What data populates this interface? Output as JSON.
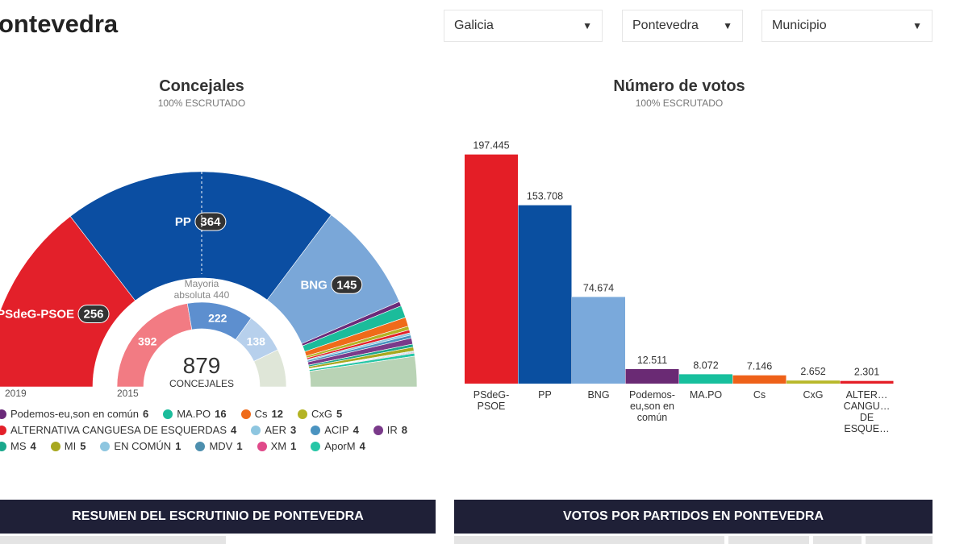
{
  "header": {
    "title": "ontevedra"
  },
  "filters": [
    "Galicia",
    "Pontevedra",
    "Municipio"
  ],
  "chart_data": [
    {
      "type": "hemicycle",
      "title": "Concejales",
      "subtitle": "100% ESCRUTADO",
      "categories": [
        "2019",
        "2015"
      ],
      "total": 879,
      "total_label": "CONCEJALES",
      "majority_text": [
        "Mayoria",
        "absoluta 440"
      ],
      "series": [
        {
          "name": "PSdeG-PSOE",
          "color": "#e3202a",
          "color_2015": "#f27b83",
          "values": [
            256,
            392
          ]
        },
        {
          "name": "PP",
          "color": "#0b4ea2",
          "color_2015": "#5d8fcf",
          "values": [
            364,
            222
          ]
        },
        {
          "name": "BNG",
          "color": "#7aa7d8",
          "color_2015": "#b7d0ec",
          "values": [
            145,
            138
          ]
        },
        {
          "name": "Podemos-eu,son en común",
          "color": "#6b2a7a",
          "values": [
            6,
            null
          ]
        },
        {
          "name": "MA.PO",
          "color": "#1bbc9b",
          "values": [
            16,
            null
          ]
        },
        {
          "name": "Cs",
          "color": "#ef6b1a",
          "values": [
            12,
            null
          ]
        },
        {
          "name": "CxG",
          "color": "#b3b324",
          "values": [
            5,
            null
          ]
        },
        {
          "name": "ALTERNATIVA CANGUESA DE ESQUERDAS",
          "color": "#e3202a",
          "values": [
            4,
            null
          ]
        },
        {
          "name": "AER",
          "color": "#8ec6e0",
          "values": [
            3,
            null
          ]
        },
        {
          "name": "ACIP",
          "color": "#4a93c0",
          "values": [
            4,
            null
          ]
        },
        {
          "name": "IR",
          "color": "#7a3a8a",
          "values": [
            8,
            null
          ]
        },
        {
          "name": "MS",
          "color": "#1aa88c",
          "values": [
            4,
            null
          ]
        },
        {
          "name": "MI",
          "color": "#a8a81f",
          "values": [
            5,
            null
          ]
        },
        {
          "name": "EN COMÚN",
          "color": "#8ec6e0",
          "values": [
            1,
            null
          ]
        },
        {
          "name": "MDV",
          "color": "#4d8fae",
          "values": [
            1,
            null
          ]
        },
        {
          "name": "XM",
          "color": "#e04a8a",
          "values": [
            1,
            null
          ]
        },
        {
          "name": "AporM",
          "color": "#26c6a6",
          "values": [
            4,
            null
          ]
        }
      ]
    },
    {
      "type": "bar",
      "title": "Número de votos",
      "subtitle": "100% ESCRUTADO",
      "categories": [
        "PSdeG-PSOE",
        "PP",
        "BNG",
        "Podemos-eu,son en común",
        "MA.PO",
        "Cs",
        "CxG",
        "ALTER… CANGU… DE ESQUE…"
      ],
      "values": [
        197445,
        153708,
        74674,
        12511,
        8072,
        7146,
        2652,
        2301
      ],
      "value_labels": [
        "197.445",
        "153.708",
        "74.674",
        "12.511",
        "8.072",
        "7.146",
        "2.652",
        "2.301"
      ],
      "colors": [
        "#e41e26",
        "#0a4fa0",
        "#7aa9db",
        "#6a2a74",
        "#17bf9d",
        "#ee6119",
        "#b8b82a",
        "#e41e26"
      ],
      "ylim": [
        0,
        200000
      ]
    }
  ],
  "sections": [
    "RESUMEN DEL ESCRUTINIO DE PONTEVEDRA",
    "VOTOS POR PARTIDOS EN PONTEVEDRA"
  ]
}
